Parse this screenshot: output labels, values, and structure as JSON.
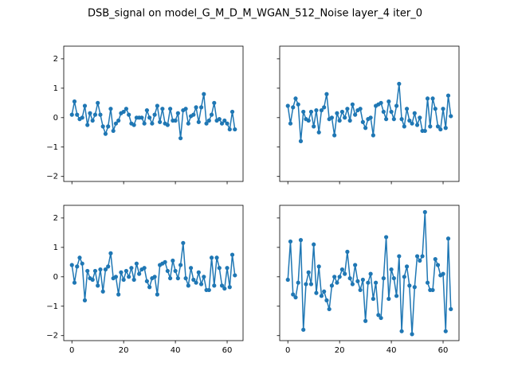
{
  "title": "DSB_signal on model_G_M_D_M_WGAN_512_Noise layer_4 iter_0",
  "chart_data": [
    {
      "type": "line",
      "marker": "o",
      "color": "#1f77b4",
      "show_xticklabels": false,
      "show_yticklabels": true,
      "x": [
        0,
        1,
        2,
        3,
        4,
        5,
        6,
        7,
        8,
        9,
        10,
        11,
        12,
        13,
        14,
        15,
        16,
        17,
        18,
        19,
        20,
        21,
        22,
        23,
        24,
        25,
        26,
        27,
        28,
        29,
        30,
        31,
        32,
        33,
        34,
        35,
        36,
        37,
        38,
        39,
        40,
        41,
        42,
        43,
        44,
        45,
        46,
        47,
        48,
        49,
        50,
        51,
        52,
        53,
        54,
        55,
        56,
        57,
        58,
        59,
        60,
        61,
        62,
        63
      ],
      "values": [
        0.1,
        0.55,
        0.1,
        -0.05,
        0.0,
        0.4,
        -0.25,
        0.15,
        -0.1,
        0.1,
        0.5,
        0.1,
        -0.3,
        -0.55,
        -0.3,
        0.3,
        -0.45,
        -0.2,
        -0.1,
        0.15,
        0.2,
        0.3,
        0.1,
        -0.2,
        -0.25,
        0.0,
        0.0,
        0.0,
        -0.2,
        0.25,
        0.0,
        -0.2,
        0.1,
        0.4,
        -0.15,
        0.3,
        -0.2,
        -0.25,
        0.3,
        -0.1,
        -0.1,
        0.15,
        -0.7,
        0.25,
        0.3,
        -0.2,
        0.05,
        0.1,
        0.35,
        -0.15,
        0.35,
        0.8,
        -0.2,
        -0.1,
        0.1,
        0.5,
        -0.1,
        -0.05,
        -0.2,
        -0.1,
        -0.2,
        -0.4,
        0.2,
        -0.4
      ],
      "xlim": [
        -3.15,
        66.15
      ],
      "xticks": [
        0,
        20,
        40,
        60
      ],
      "ylim": [
        -2.17,
        2.43
      ],
      "yticks": [
        {
          "value": -2,
          "label": "−2"
        },
        {
          "value": -1,
          "label": "−1"
        },
        0,
        1,
        2
      ]
    },
    {
      "type": "line",
      "marker": "o",
      "color": "#1f77b4",
      "show_xticklabels": false,
      "show_yticklabels": false,
      "x": [
        0,
        1,
        2,
        3,
        4,
        5,
        6,
        7,
        8,
        9,
        10,
        11,
        12,
        13,
        14,
        15,
        16,
        17,
        18,
        19,
        20,
        21,
        22,
        23,
        24,
        25,
        26,
        27,
        28,
        29,
        30,
        31,
        32,
        33,
        34,
        35,
        36,
        37,
        38,
        39,
        40,
        41,
        42,
        43,
        44,
        45,
        46,
        47,
        48,
        49,
        50,
        51,
        52,
        53,
        54,
        55,
        56,
        57,
        58,
        59,
        60,
        61,
        62,
        63
      ],
      "values": [
        0.4,
        -0.2,
        0.35,
        0.65,
        0.45,
        -0.8,
        0.2,
        -0.05,
        -0.1,
        0.2,
        -0.3,
        0.25,
        -0.5,
        0.25,
        0.35,
        0.8,
        -0.05,
        0.0,
        -0.6,
        0.15,
        -0.1,
        0.2,
        0.0,
        0.3,
        -0.1,
        0.45,
        0.1,
        0.25,
        0.3,
        -0.15,
        -0.35,
        -0.05,
        0.0,
        -0.6,
        0.4,
        0.45,
        0.5,
        0.2,
        -0.05,
        0.55,
        0.2,
        -0.05,
        0.4,
        1.15,
        -0.05,
        -0.3,
        0.3,
        -0.1,
        -0.2,
        0.15,
        -0.25,
        0.0,
        -0.45,
        -0.45,
        0.65,
        -0.3,
        0.65,
        0.3,
        -0.3,
        -0.4,
        0.3,
        -0.35,
        0.75,
        0.05
      ],
      "xlim": [
        -3.15,
        66.15
      ],
      "xticks": [
        0,
        20,
        40,
        60
      ],
      "ylim": [
        -2.17,
        2.43
      ],
      "yticks": [
        {
          "value": -2,
          "label": "−2"
        },
        {
          "value": -1,
          "label": "−1"
        },
        0,
        1,
        2
      ]
    },
    {
      "type": "line",
      "marker": "o",
      "color": "#1f77b4",
      "show_xticklabels": true,
      "show_yticklabels": true,
      "x": [
        0,
        1,
        2,
        3,
        4,
        5,
        6,
        7,
        8,
        9,
        10,
        11,
        12,
        13,
        14,
        15,
        16,
        17,
        18,
        19,
        20,
        21,
        22,
        23,
        24,
        25,
        26,
        27,
        28,
        29,
        30,
        31,
        32,
        33,
        34,
        35,
        36,
        37,
        38,
        39,
        40,
        41,
        42,
        43,
        44,
        45,
        46,
        47,
        48,
        49,
        50,
        51,
        52,
        53,
        54,
        55,
        56,
        57,
        58,
        59,
        60,
        61,
        62,
        63
      ],
      "values": [
        0.4,
        -0.2,
        0.35,
        0.65,
        0.45,
        -0.8,
        0.2,
        -0.05,
        -0.1,
        0.2,
        -0.3,
        0.25,
        -0.5,
        0.25,
        0.35,
        0.8,
        -0.05,
        0.0,
        -0.6,
        0.15,
        -0.1,
        0.2,
        0.0,
        0.3,
        -0.1,
        0.45,
        0.1,
        0.25,
        0.3,
        -0.15,
        -0.35,
        -0.05,
        0.0,
        -0.6,
        0.4,
        0.45,
        0.5,
        0.2,
        -0.05,
        0.55,
        0.2,
        -0.05,
        0.4,
        1.15,
        -0.05,
        -0.3,
        0.3,
        -0.1,
        -0.2,
        0.15,
        -0.25,
        0.0,
        -0.45,
        -0.45,
        0.65,
        -0.3,
        0.65,
        0.3,
        -0.3,
        -0.4,
        0.3,
        -0.35,
        0.75,
        0.05
      ],
      "xlim": [
        -3.15,
        66.15
      ],
      "xticks": [
        0,
        20,
        40,
        60
      ],
      "ylim": [
        -2.17,
        2.43
      ],
      "yticks": [
        {
          "value": -2,
          "label": "−2"
        },
        {
          "value": -1,
          "label": "−1"
        },
        0,
        1,
        2
      ]
    },
    {
      "type": "line",
      "marker": "o",
      "color": "#1f77b4",
      "show_xticklabels": true,
      "show_yticklabels": false,
      "x": [
        0,
        1,
        2,
        3,
        4,
        5,
        6,
        7,
        8,
        9,
        10,
        11,
        12,
        13,
        14,
        15,
        16,
        17,
        18,
        19,
        20,
        21,
        22,
        23,
        24,
        25,
        26,
        27,
        28,
        29,
        30,
        31,
        32,
        33,
        34,
        35,
        36,
        37,
        38,
        39,
        40,
        41,
        42,
        43,
        44,
        45,
        46,
        47,
        48,
        49,
        50,
        51,
        52,
        53,
        54,
        55,
        56,
        57,
        58,
        59,
        60,
        61,
        62,
        63
      ],
      "values": [
        -0.1,
        1.2,
        -0.6,
        -0.7,
        -0.2,
        1.25,
        -1.8,
        -0.25,
        0.15,
        -0.25,
        1.1,
        -0.55,
        0.35,
        -0.65,
        -0.5,
        -0.8,
        -1.1,
        -0.3,
        0.0,
        -0.2,
        0.0,
        0.25,
        0.1,
        0.85,
        -0.05,
        -0.25,
        0.4,
        -0.15,
        -0.45,
        -0.1,
        -1.5,
        -0.2,
        0.1,
        -0.75,
        -0.2,
        -1.3,
        -1.4,
        -0.05,
        1.35,
        -0.75,
        0.25,
        -0.05,
        -0.65,
        0.7,
        -1.85,
        0.0,
        0.35,
        -0.3,
        -1.95,
        -0.35,
        0.7,
        0.55,
        0.7,
        2.2,
        -0.2,
        -0.45,
        -0.45,
        0.6,
        0.4,
        0.05,
        0.1,
        -1.85,
        1.3,
        -1.1
      ],
      "xlim": [
        -3.15,
        66.15
      ],
      "xticks": [
        0,
        20,
        40,
        60
      ],
      "ylim": [
        -2.17,
        2.43
      ],
      "yticks": [
        {
          "value": -2,
          "label": "−2"
        },
        {
          "value": -1,
          "label": "−1"
        },
        0,
        1,
        2
      ]
    }
  ]
}
